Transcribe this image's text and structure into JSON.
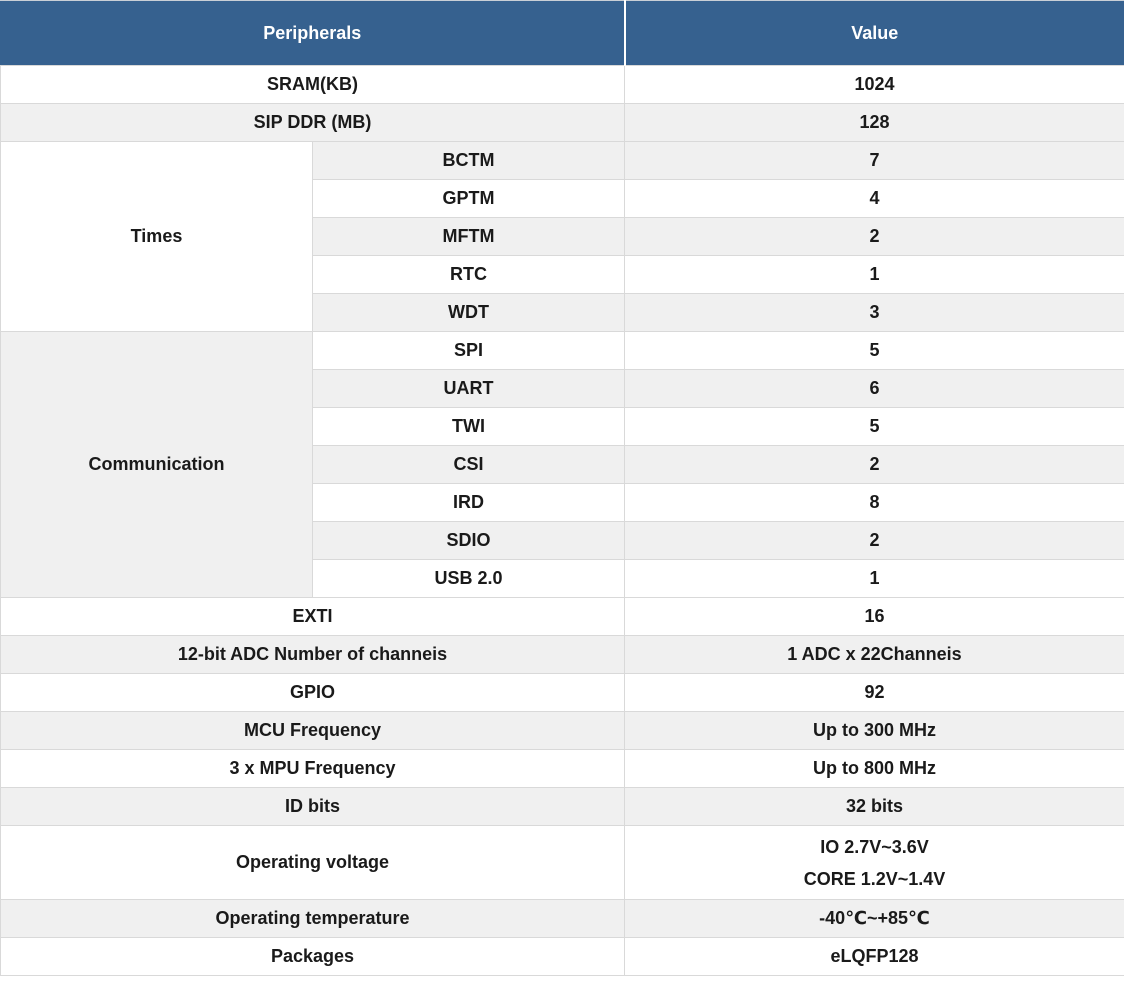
{
  "colors": {
    "header_bg": "#36618f",
    "header_text": "#ffffff",
    "stripe_bg": "#f0f0f0",
    "row_bg": "#ffffff",
    "border": "#d9d9d9",
    "text": "#1a1a1a"
  },
  "table": {
    "columns": [
      "Peripherals",
      "Value"
    ],
    "rows": [
      {
        "label": "SRAM(KB)",
        "value": "1024",
        "bg": "white"
      },
      {
        "label": "SIP DDR (MB)",
        "value": "128",
        "bg": "gray"
      },
      {
        "group": "Times",
        "group_bg": "white",
        "items": [
          {
            "label": "BCTM",
            "value": "7",
            "bg": "gray"
          },
          {
            "label": "GPTM",
            "value": "4",
            "bg": "white"
          },
          {
            "label": "MFTM",
            "value": "2",
            "bg": "gray"
          },
          {
            "label": "RTC",
            "value": "1",
            "bg": "white"
          },
          {
            "label": "WDT",
            "value": "3",
            "bg": "gray"
          }
        ]
      },
      {
        "group": "Communication",
        "group_bg": "gray",
        "items": [
          {
            "label": "SPI",
            "value": "5",
            "bg": "white"
          },
          {
            "label": "UART",
            "value": "6",
            "bg": "gray"
          },
          {
            "label": "TWI",
            "value": "5",
            "bg": "white"
          },
          {
            "label": "CSI",
            "value": "2",
            "bg": "gray"
          },
          {
            "label": "IRD",
            "value": "8",
            "bg": "white"
          },
          {
            "label": "SDIO",
            "value": "2",
            "bg": "gray"
          },
          {
            "label": "USB 2.0",
            "value": "1",
            "bg": "white"
          }
        ]
      },
      {
        "label": "EXTI",
        "value": "16",
        "bg": "white"
      },
      {
        "label": "12-bit ADC Number of channeis",
        "value": "1 ADC x 22Channeis",
        "bg": "gray"
      },
      {
        "label": "GPIO",
        "value": "92",
        "bg": "white"
      },
      {
        "label": "MCU Frequency",
        "value": "Up to 300 MHz",
        "bg": "gray"
      },
      {
        "label": "3 x MPU Frequency",
        "value": "Up to 800 MHz",
        "bg": "white"
      },
      {
        "label": "ID bits",
        "value": "32 bits",
        "bg": "gray"
      },
      {
        "label": "Operating voltage",
        "value_lines": [
          "IO 2.7V~3.6V",
          "CORE 1.2V~1.4V"
        ],
        "bg": "white",
        "tall": true
      },
      {
        "label": "Operating temperature",
        "value": "-40℃~+85℃",
        "bg": "gray"
      },
      {
        "label": "Packages",
        "value": "eLQFP128",
        "bg": "white"
      }
    ]
  }
}
